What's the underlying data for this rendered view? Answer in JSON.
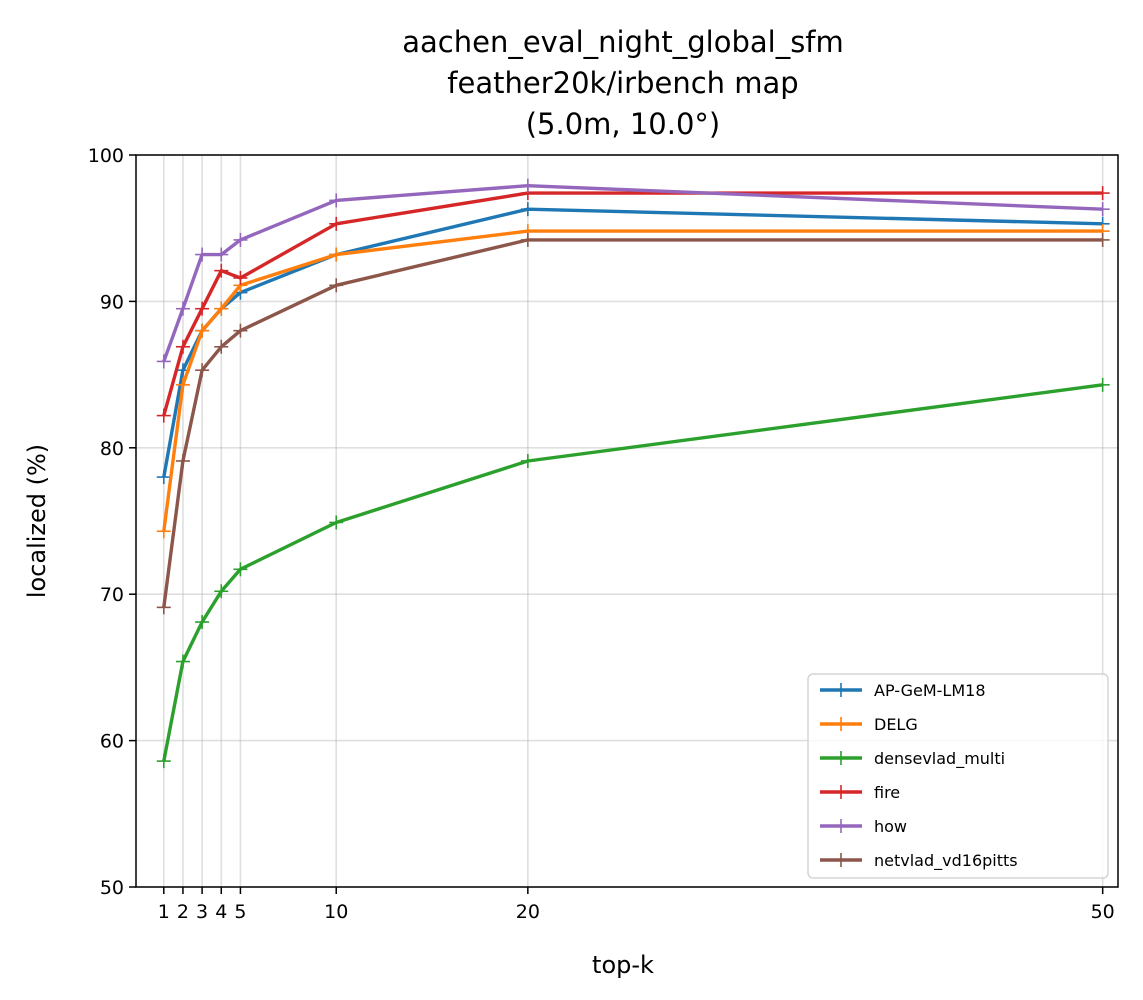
{
  "chart_data": {
    "type": "line",
    "title_lines": [
      "aachen_eval_night_global_sfm",
      "feather20k/irbench map",
      "(5.0m, 10.0°)"
    ],
    "xlabel": "top-k",
    "ylabel": "localized (%)",
    "x": [
      1,
      2,
      3,
      4,
      5,
      10,
      20,
      50
    ],
    "x_tick_labels": [
      "1",
      "2",
      "3",
      "4",
      "5",
      "10",
      "20",
      "50"
    ],
    "xlim": [
      -0.45,
      50.8
    ],
    "ylim": [
      50,
      100
    ],
    "y_ticks": [
      50,
      60,
      70,
      80,
      90,
      100
    ],
    "y_tick_labels": [
      "50",
      "60",
      "70",
      "80",
      "90",
      "100"
    ],
    "grid": true,
    "legend_position": "lower-right",
    "series": [
      {
        "name": "AP-GeM-LM18",
        "color": "#1f77b4",
        "values": [
          78.0,
          85.3,
          88.0,
          89.5,
          90.6,
          93.2,
          96.3,
          95.3
        ]
      },
      {
        "name": "DELG",
        "color": "#ff7f0e",
        "values": [
          74.3,
          84.3,
          88.0,
          89.5,
          91.1,
          93.2,
          94.8,
          94.8
        ]
      },
      {
        "name": "densevlad_multi",
        "color": "#2ca02c",
        "values": [
          58.6,
          65.4,
          68.1,
          70.2,
          71.7,
          74.9,
          79.1,
          84.3
        ]
      },
      {
        "name": "fire",
        "color": "#d62728",
        "values": [
          82.2,
          86.9,
          89.5,
          92.1,
          91.6,
          95.3,
          97.4,
          97.4
        ]
      },
      {
        "name": "how",
        "color": "#9467bd",
        "values": [
          85.9,
          89.5,
          93.2,
          93.2,
          94.2,
          96.9,
          97.9,
          96.3
        ]
      },
      {
        "name": "netvlad_vd16pitts",
        "color": "#8c564b",
        "values": [
          69.1,
          79.1,
          85.3,
          86.9,
          88.0,
          91.1,
          94.2,
          94.2
        ]
      }
    ]
  }
}
